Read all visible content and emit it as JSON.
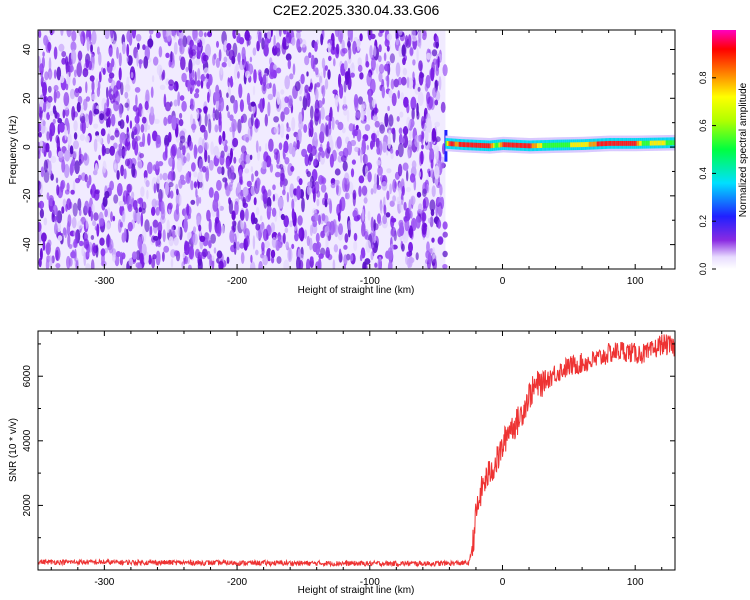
{
  "title": "C2E2.2025.330.04.33.G06",
  "colors": {
    "line": "#ee3333",
    "frame": "#000000"
  },
  "chart_data": [
    {
      "type": "heatmap",
      "xlabel": "Height of straight line (km)",
      "ylabel": "Frequency (Hz)",
      "xlim": [
        -350,
        130
      ],
      "ylim": [
        -50,
        48
      ],
      "xticks": [
        -300,
        -200,
        -100,
        0,
        100
      ],
      "xtick_labels": [
        "-300",
        "-200",
        "-100",
        "0",
        "100"
      ],
      "yticks": [
        -40,
        -20,
        0,
        20,
        40
      ],
      "ytick_labels": [
        "-40",
        "-20",
        "0",
        "20",
        "40"
      ],
      "noise_region_x": [
        -350,
        -43
      ],
      "signal_region_x": [
        -43,
        130
      ],
      "signal_center_hz": [
        [
          -43,
          1.5
        ],
        [
          -30,
          1.0
        ],
        [
          -10,
          0.5
        ],
        [
          0,
          1.0
        ],
        [
          20,
          0.5
        ],
        [
          40,
          0.8
        ],
        [
          60,
          1.0
        ],
        [
          80,
          1.5
        ],
        [
          100,
          1.5
        ],
        [
          130,
          1.8
        ]
      ],
      "signal_amplitude": [
        [
          -43,
          0.55
        ],
        [
          -40,
          0.95
        ],
        [
          -35,
          0.8
        ],
        [
          -30,
          0.95
        ],
        [
          -20,
          0.9
        ],
        [
          -10,
          0.92
        ],
        [
          -5,
          0.45
        ],
        [
          0,
          0.9
        ],
        [
          10,
          0.95
        ],
        [
          20,
          0.9
        ],
        [
          30,
          0.55
        ],
        [
          40,
          0.5
        ],
        [
          60,
          0.6
        ],
        [
          70,
          0.85
        ],
        [
          80,
          0.95
        ],
        [
          90,
          0.95
        ],
        [
          100,
          0.92
        ],
        [
          105,
          0.5
        ],
        [
          115,
          0.6
        ],
        [
          130,
          0.5
        ]
      ],
      "colorbar": {
        "label": "Normalized spectral amplitude",
        "range": [
          0,
          1
        ],
        "ticks": [
          0.0,
          0.2,
          0.4,
          0.6,
          0.8
        ],
        "tick_labels": [
          "0.0",
          "0.2",
          "0.4",
          "0.6",
          "0.8"
        ],
        "colormap": "rainbow (white → violet → blue → cyan → green → yellow → red → magenta)"
      }
    },
    {
      "type": "line",
      "xlabel": "Height of straight line (km)",
      "ylabel": "SNR (10 * v/v)",
      "xlim": [
        -350,
        130
      ],
      "ylim": [
        0,
        7400
      ],
      "xticks": [
        -300,
        -200,
        -100,
        0,
        100
      ],
      "xtick_labels": [
        "-300",
        "-200",
        "-100",
        "0",
        "100"
      ],
      "yticks": [
        2000,
        4000,
        6000
      ],
      "ytick_labels": [
        "2000",
        "4000",
        "6000"
      ],
      "series": [
        {
          "name": "SNR",
          "x": [
            -350,
            -300,
            -250,
            -200,
            -150,
            -100,
            -50,
            -25,
            -22,
            -20,
            -15,
            -10,
            -5,
            0,
            5,
            10,
            15,
            20,
            25,
            30,
            40,
            50,
            60,
            70,
            80,
            90,
            100,
            110,
            120,
            130
          ],
          "values": [
            250,
            240,
            230,
            220,
            210,
            200,
            200,
            220,
            900,
            1700,
            2600,
            3000,
            3300,
            3800,
            4400,
            4500,
            4900,
            5400,
            5700,
            5800,
            6100,
            6300,
            6400,
            6500,
            6700,
            6800,
            6700,
            6700,
            7000,
            6900
          ]
        }
      ]
    }
  ]
}
